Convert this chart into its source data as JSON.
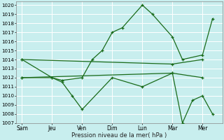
{
  "background_color": "#c8eeee",
  "grid_color": "#ffffff",
  "line_color": "#1a6b1a",
  "xlabel": "Pression niveau de la mer( hPa )",
  "ylim": [
    1007,
    1020.4
  ],
  "yticks": [
    1007,
    1008,
    1009,
    1010,
    1011,
    1012,
    1013,
    1014,
    1015,
    1016,
    1017,
    1018,
    1019,
    1020
  ],
  "x_labels": [
    "Sam",
    "Jeu",
    "Ven",
    "Dim",
    "Lun",
    "Mar",
    "Mer"
  ],
  "x_ticks": [
    0,
    1.5,
    3.0,
    4.5,
    6.0,
    7.5,
    9.0
  ],
  "xlim": [
    -0.3,
    10.0
  ],
  "lines": [
    {
      "x": [
        0,
        1.5,
        2.0,
        3.0,
        3.5,
        4.0,
        4.5,
        5.0,
        6.0,
        6.5,
        7.5,
        8.0,
        9.0,
        9.5
      ],
      "y": [
        1014,
        1012,
        1011.7,
        1012,
        1014,
        1015,
        1017,
        1017.5,
        1020,
        1019,
        1016.5,
        1014,
        1014.5,
        1018.5
      ]
    },
    {
      "x": [
        0,
        7.5,
        9.0
      ],
      "y": [
        1014,
        1013.5,
        1014.0
      ]
    },
    {
      "x": [
        0,
        7.5,
        9.0
      ],
      "y": [
        1012,
        1012.5,
        1012.0
      ]
    },
    {
      "x": [
        0,
        1.5,
        2.0,
        2.5,
        3.0,
        4.5,
        6.0,
        7.5,
        8.0,
        8.5,
        9.0,
        9.5
      ],
      "y": [
        1012,
        1012,
        1011.5,
        1010,
        1008.5,
        1012,
        1011,
        1012.5,
        1007,
        1009.5,
        1010,
        1008
      ]
    }
  ]
}
